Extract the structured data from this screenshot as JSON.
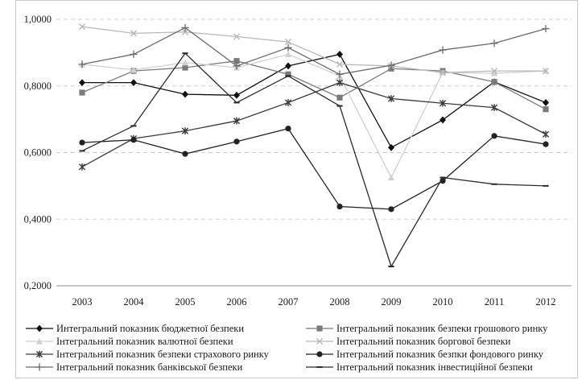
{
  "chart_data": {
    "type": "line",
    "title": "",
    "xlabel": "",
    "ylabel": "",
    "x": [
      "2003",
      "2004",
      "2005",
      "2006",
      "2007",
      "2008",
      "2009",
      "2010",
      "2011",
      "2012"
    ],
    "ylim": [
      0.2,
      1.0
    ],
    "yticks": [
      "0,2000",
      "0,4000",
      "0,6000",
      "0,8000",
      "1,0000"
    ],
    "grid": "horizontal dashed",
    "legend_position": "bottom",
    "series": [
      {
        "name": "Интегральний показник бюджетної безпеки",
        "marker": "diamond",
        "color": "#111111",
        "values": [
          0.81,
          0.81,
          0.775,
          0.772,
          0.86,
          0.895,
          0.615,
          0.698,
          0.812,
          0.75
        ]
      },
      {
        "name": "Інтегральний показник безпеки грошового ринку",
        "marker": "square",
        "color": "#7a7a7a",
        "values": [
          0.78,
          0.845,
          0.855,
          0.875,
          0.835,
          0.765,
          0.852,
          0.845,
          0.812,
          0.73
        ]
      },
      {
        "name": "Інтегральний показник валютної безпеки",
        "marker": "triangle",
        "color": "#d0d0d0",
        "values": [
          0.865,
          0.848,
          0.87,
          0.855,
          0.895,
          0.83,
          0.525,
          0.84,
          0.838,
          0.845
        ]
      },
      {
        "name": "Інтегральний показник боргової безпеки",
        "marker": "x",
        "color": "#b8b8b8",
        "values": [
          0.978,
          0.958,
          0.962,
          0.948,
          0.932,
          0.865,
          0.86,
          0.84,
          0.845,
          0.845
        ]
      },
      {
        "name": "Інтегральний показник безпеки страхового ринку",
        "marker": "star",
        "color": "#3a3a3a",
        "values": [
          0.557,
          0.642,
          0.665,
          0.695,
          0.75,
          0.81,
          0.762,
          0.748,
          0.735,
          0.655
        ]
      },
      {
        "name": "Інтегральний показник безпки фондового ринку",
        "marker": "circle",
        "color": "#222222",
        "values": [
          0.63,
          0.638,
          0.596,
          0.633,
          0.672,
          0.438,
          0.43,
          0.515,
          0.65,
          0.625
        ]
      },
      {
        "name": "Інтегральний показник банківської безпеки",
        "marker": "plus",
        "color": "#6a6a6a",
        "values": [
          0.865,
          0.895,
          0.975,
          0.86,
          0.915,
          0.835,
          0.862,
          0.908,
          0.928,
          0.972
        ]
      },
      {
        "name": "Інтегральний показник інвестиційної безпеки",
        "marker": "dash",
        "color": "#2a2a2a",
        "values": [
          0.605,
          0.68,
          0.898,
          0.75,
          0.83,
          0.74,
          0.258,
          0.525,
          0.505,
          0.5
        ]
      }
    ]
  }
}
